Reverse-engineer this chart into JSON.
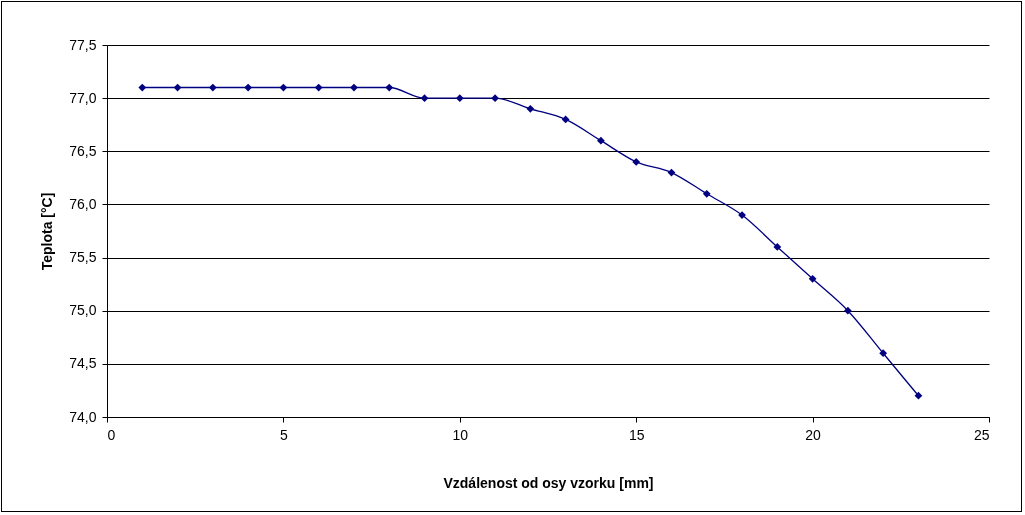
{
  "chart_data": {
    "type": "line",
    "xlabel": "Vzdálenost od osy vzorku [mm]",
    "ylabel": "Teplota [°C]",
    "x": [
      1,
      2,
      3,
      4,
      5,
      6,
      7,
      8,
      9,
      10,
      11,
      12,
      13,
      14,
      15,
      16,
      17,
      18,
      19,
      20,
      21,
      22,
      23
    ],
    "series": [
      {
        "color": "#000080",
        "values": [
          77.1,
          77.1,
          77.1,
          77.1,
          77.1,
          77.1,
          77.1,
          77.1,
          77.0,
          77.0,
          77.0,
          76.9,
          76.8,
          76.6,
          76.4,
          76.3,
          76.1,
          75.9,
          75.6,
          75.3,
          75.0,
          74.6,
          74.2
        ]
      }
    ],
    "xlim": [
      0,
      25
    ],
    "xticks": [
      0,
      5,
      10,
      15,
      20,
      25
    ],
    "ylim": [
      74,
      77.5
    ],
    "yticks": [
      {
        "value": 74,
        "label": "74,0"
      },
      {
        "value": 74.5,
        "label": "74,5"
      },
      {
        "value": 75,
        "label": "75,0"
      },
      {
        "value": 75.5,
        "label": "75,5"
      },
      {
        "value": 76,
        "label": "76,0"
      },
      {
        "value": 76.5,
        "label": "76,5"
      },
      {
        "value": 77,
        "label": "77,0"
      },
      {
        "value": 77.5,
        "label": "77,5"
      }
    ],
    "grid": "y",
    "legend": false,
    "marker": "diamond",
    "line_style": "solid"
  }
}
